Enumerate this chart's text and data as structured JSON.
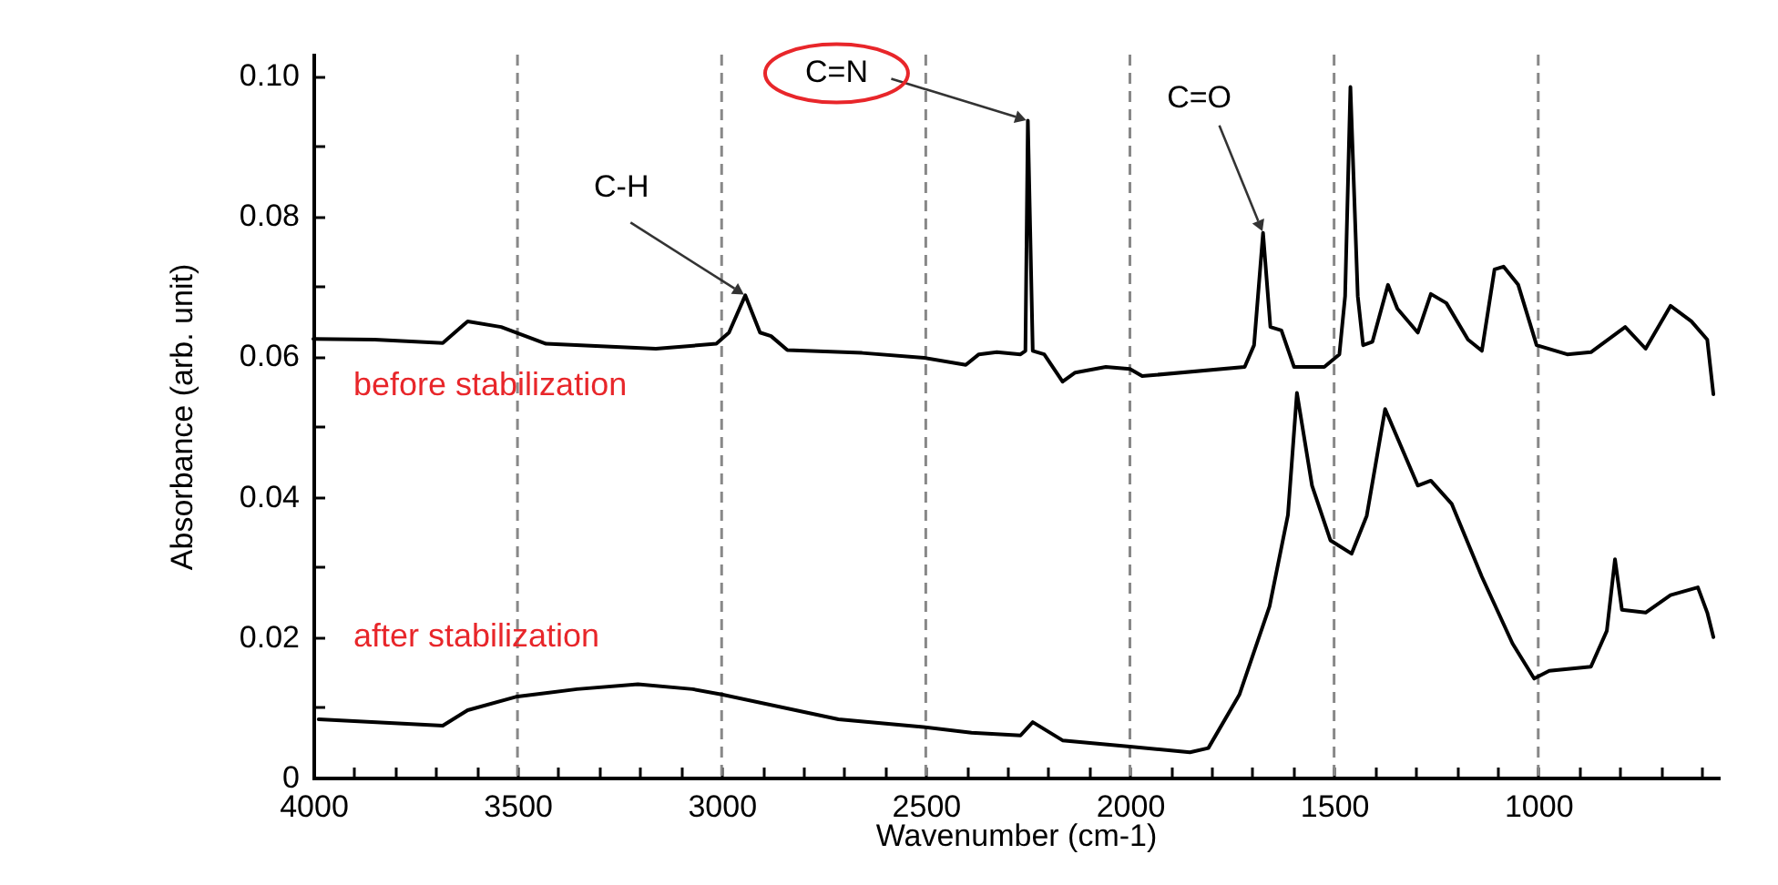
{
  "chart_data": {
    "type": "line",
    "xlabel": "Wavenumber (cm-1)",
    "ylabel": "Absorbance (arb. unit)",
    "xlim": [
      4000,
      560
    ],
    "ylim": [
      0,
      0.103
    ],
    "xticks": [
      4000,
      {
        "value": 3900,
        "label": null
      },
      {
        "value": 3800,
        "label": null
      },
      {
        "value": 3700,
        "label": null
      },
      {
        "value": 3600,
        "label": null
      },
      3500,
      {
        "value": 3400,
        "label": null
      },
      {
        "value": 3300,
        "label": null
      },
      {
        "value": 3200,
        "label": null
      },
      {
        "value": 3100,
        "label": null
      },
      3000,
      {
        "value": 2900,
        "label": null
      },
      {
        "value": 2800,
        "label": null
      },
      {
        "value": 2700,
        "label": null
      },
      {
        "value": 2600,
        "label": null
      },
      2500,
      {
        "value": 2400,
        "label": null
      },
      {
        "value": 2300,
        "label": null
      },
      {
        "value": 2200,
        "label": null
      },
      {
        "value": 2100,
        "label": null
      },
      2000,
      {
        "value": 1900,
        "label": null
      },
      {
        "value": 1800,
        "label": null
      },
      {
        "value": 1700,
        "label": null
      },
      {
        "value": 1600,
        "label": null
      },
      1500,
      {
        "value": 1400,
        "label": null
      },
      {
        "value": 1300,
        "label": null
      },
      {
        "value": 1200,
        "label": null
      },
      {
        "value": 1100,
        "label": null
      },
      1000,
      {
        "value": 900,
        "label": null
      },
      {
        "value": 800,
        "label": null
      },
      {
        "value": 700,
        "label": null
      },
      {
        "value": 600,
        "label": null
      }
    ],
    "yticks": [
      0,
      {
        "value": 0.01,
        "label": null
      },
      0.02,
      {
        "value": 0.03,
        "label": null
      },
      0.04,
      {
        "value": 0.05,
        "label": null
      },
      0.06,
      {
        "value": 0.07,
        "label": null
      },
      0.08,
      {
        "value": 0.09,
        "label": null
      },
      {
        "value": 0.1,
        "label": "0.10"
      }
    ],
    "legend": false,
    "series": [
      {
        "name": "before stabilization",
        "color": "#000000",
        "x": [
          4000,
          3850,
          3683,
          3622,
          3540,
          3430,
          3161,
          3013,
          2982,
          2942,
          2906,
          2879,
          2839,
          2656,
          2504,
          2402,
          2370,
          2326,
          2268,
          2256,
          2250,
          2238,
          2210,
          2165,
          2134,
          2059,
          2000,
          1970,
          1719,
          1696,
          1674,
          1656,
          1629,
          1598,
          1524,
          1487,
          1473,
          1460,
          1442,
          1429,
          1406,
          1368,
          1345,
          1295,
          1263,
          1225,
          1172,
          1138,
          1107,
          1085,
          1049,
          1004,
          929,
          871,
          787,
          737,
          676,
          625,
          586,
          571
        ],
        "values": [
          0.0625,
          0.0624,
          0.0619,
          0.065,
          0.0642,
          0.0618,
          0.0611,
          0.0618,
          0.0634,
          0.0687,
          0.0634,
          0.0629,
          0.0609,
          0.0605,
          0.0598,
          0.0588,
          0.0603,
          0.0606,
          0.0603,
          0.0608,
          0.0936,
          0.0608,
          0.0603,
          0.0564,
          0.0577,
          0.0585,
          0.0582,
          0.0572,
          0.0585,
          0.0616,
          0.0776,
          0.0642,
          0.0637,
          0.0585,
          0.0585,
          0.0603,
          0.0686,
          0.0984,
          0.0686,
          0.0616,
          0.0621,
          0.0702,
          0.0668,
          0.0634,
          0.0689,
          0.0676,
          0.0624,
          0.0608,
          0.0724,
          0.0728,
          0.0702,
          0.0616,
          0.0603,
          0.0606,
          0.0642,
          0.0611,
          0.0672,
          0.065,
          0.0624,
          0.0546
        ]
      },
      {
        "name": "after stabilization",
        "color": "#000000",
        "x": [
          3987,
          3683,
          3622,
          3504,
          3354,
          3205,
          3071,
          2997,
          2714,
          2506,
          2388,
          2268,
          2238,
          2165,
          2000,
          1853,
          1808,
          1732,
          1658,
          1613,
          1591,
          1554,
          1509,
          1457,
          1420,
          1375,
          1295,
          1263,
          1212,
          1138,
          1063,
          1010,
          973,
          871,
          832,
          812,
          795,
          737,
          676,
          609,
          586,
          571
        ],
        "values": [
          0.0083,
          0.0074,
          0.0096,
          0.0115,
          0.0126,
          0.0133,
          0.0126,
          0.0118,
          0.0083,
          0.0072,
          0.0064,
          0.006,
          0.0079,
          0.0053,
          0.0044,
          0.0036,
          0.0042,
          0.0118,
          0.0244,
          0.0374,
          0.0548,
          0.0416,
          0.0338,
          0.0319,
          0.0373,
          0.0525,
          0.0416,
          0.0423,
          0.039,
          0.0286,
          0.0191,
          0.0141,
          0.0152,
          0.0158,
          0.0209,
          0.0311,
          0.0239,
          0.0235,
          0.026,
          0.0271,
          0.0235,
          0.02
        ]
      }
    ],
    "ref_lines": [
      {
        "axis": "x",
        "value": 3500,
        "color": "#888888",
        "line_style": "dashed"
      },
      {
        "axis": "x",
        "value": 3000,
        "color": "#888888",
        "line_style": "dashed"
      },
      {
        "axis": "x",
        "value": 2500,
        "color": "#888888",
        "line_style": "dashed"
      },
      {
        "axis": "x",
        "value": 2000,
        "color": "#888888",
        "line_style": "dashed"
      },
      {
        "axis": "x",
        "value": 1500,
        "color": "#888888",
        "line_style": "dashed"
      },
      {
        "axis": "x",
        "value": 1000,
        "color": "#888888",
        "line_style": "dashed"
      }
    ],
    "annotations": [
      {
        "text": "C-H",
        "x": 2942,
        "y": 0.0687
      },
      {
        "text": "C=N",
        "x": 2250,
        "y": 0.0936
      },
      {
        "text": "C=O",
        "x": 1674,
        "y": 0.0776
      }
    ]
  }
}
